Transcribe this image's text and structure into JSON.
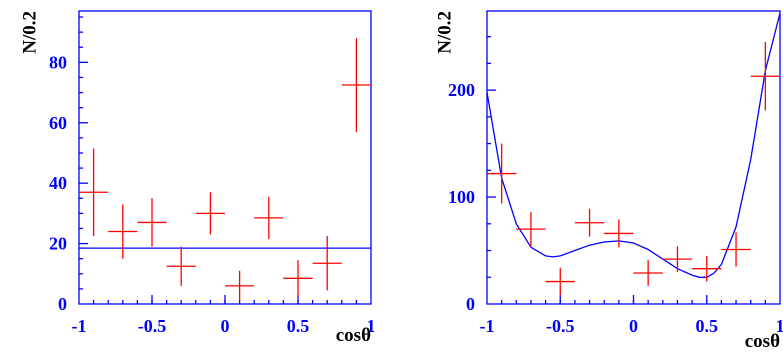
{
  "colors": {
    "axes": "#0000ff",
    "data": "#ff0000",
    "fit": "#0000ff",
    "text": "#000000"
  },
  "chart_data": [
    {
      "type": "scatter",
      "xlabel": "cosθ",
      "ylabel": "N/0.2",
      "xlim": [
        -1,
        1
      ],
      "ylim": [
        0,
        97
      ],
      "x_ticks": [
        -1,
        -0.5,
        0,
        0.5,
        1
      ],
      "x_tick_labels": [
        "-1",
        "-0.5",
        "0",
        "0.5",
        "1"
      ],
      "y_ticks": [
        0,
        20,
        40,
        60,
        80
      ],
      "y_tick_labels": [
        "0",
        "20",
        "40",
        "60",
        "80"
      ],
      "points": [
        {
          "x": -0.9,
          "y": 37,
          "yerr": 14.5
        },
        {
          "x": -0.7,
          "y": 24,
          "yerr": 9
        },
        {
          "x": -0.5,
          "y": 27,
          "yerr": 8
        },
        {
          "x": -0.3,
          "y": 12.5,
          "yerr": 6.5
        },
        {
          "x": -0.1,
          "y": 30,
          "yerr": 7
        },
        {
          "x": 0.1,
          "y": 6,
          "yerr": 5
        },
        {
          "x": 0.3,
          "y": 28.5,
          "yerr": 7
        },
        {
          "x": 0.5,
          "y": 8.5,
          "yerr": 6
        },
        {
          "x": 0.7,
          "y": 13.5,
          "yerr": 9
        },
        {
          "x": 0.9,
          "y": 72.5,
          "yerr": 15.5
        }
      ],
      "x_err": 0.1,
      "fit": {
        "type": "constant",
        "value": 18.5
      }
    },
    {
      "type": "scatter",
      "xlabel": "cosθ",
      "ylabel": "N/0.2",
      "xlim": [
        -1,
        1
      ],
      "ylim": [
        0,
        274
      ],
      "x_ticks": [
        -1,
        -0.5,
        0,
        0.5,
        1
      ],
      "x_tick_labels": [
        "-1",
        "-0.5",
        "0",
        "0.5",
        "1"
      ],
      "y_ticks": [
        0,
        100,
        200
      ],
      "y_tick_labels": [
        "0",
        "100",
        "200"
      ],
      "points": [
        {
          "x": -0.9,
          "y": 122,
          "yerr": 28
        },
        {
          "x": -0.7,
          "y": 70,
          "yerr": 16
        },
        {
          "x": -0.5,
          "y": 21,
          "yerr": 13
        },
        {
          "x": -0.3,
          "y": 76,
          "yerr": 13
        },
        {
          "x": -0.1,
          "y": 66,
          "yerr": 13
        },
        {
          "x": 0.1,
          "y": 29,
          "yerr": 12
        },
        {
          "x": 0.3,
          "y": 42,
          "yerr": 12
        },
        {
          "x": 0.5,
          "y": 33,
          "yerr": 12
        },
        {
          "x": 0.7,
          "y": 51,
          "yerr": 16
        },
        {
          "x": 0.9,
          "y": 213,
          "yerr": 32
        }
      ],
      "x_err": 0.1,
      "fit": {
        "type": "polynomial",
        "x": [
          -1,
          -0.9,
          -0.8,
          -0.7,
          -0.6,
          -0.55,
          -0.5,
          -0.4,
          -0.3,
          -0.2,
          -0.1,
          0,
          0.1,
          0.2,
          0.3,
          0.4,
          0.45,
          0.5,
          0.55,
          0.6,
          0.7,
          0.8,
          0.9,
          1
        ],
        "y": [
          198,
          118,
          75,
          53,
          45,
          44,
          45,
          50,
          55,
          58,
          59,
          57,
          51,
          42,
          33,
          27,
          25,
          25,
          29,
          37,
          72,
          135,
          218,
          272
        ]
      }
    }
  ]
}
